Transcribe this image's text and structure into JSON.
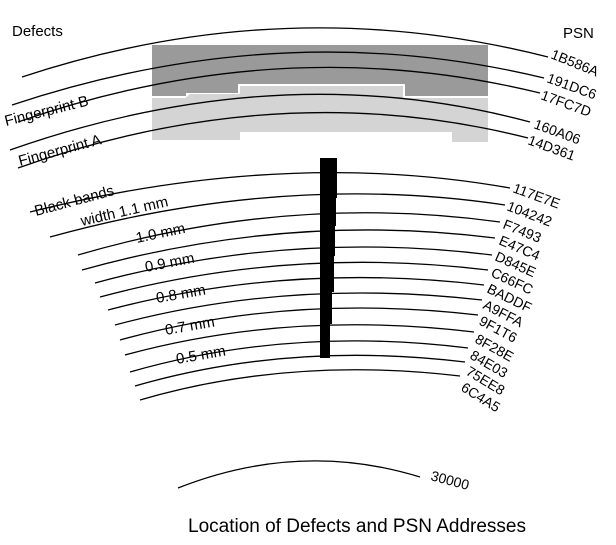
{
  "header": {
    "left_label": "Defects",
    "right_label": "PSN"
  },
  "fingerprints": {
    "b_label": "Fingerprint B",
    "a_label": "Fingerprint A",
    "b_color": "#9a9a9a",
    "a_color": "#d4d4d4"
  },
  "bands": {
    "title": "Black bands",
    "widths": [
      "width 1.1 mm",
      "1.0 mm",
      "0.9 mm",
      "0.8 mm",
      "0.7 mm",
      "0.5 mm"
    ],
    "bar_color": "#000000"
  },
  "psn_upper": [
    "1B586A",
    "191DC6",
    "17FC7D",
    "160A06",
    "14D361"
  ],
  "psn_lower": [
    "117E7E",
    "104242",
    "F7493",
    "E47C4",
    "D845E",
    "C66FC",
    "BADDF",
    "A9FFA",
    "9F1T6",
    "8F28E",
    "84E03",
    "75EE8",
    "6C4A5"
  ],
  "inner_track": "30000",
  "caption": "Location of Defects and PSN Addresses"
}
